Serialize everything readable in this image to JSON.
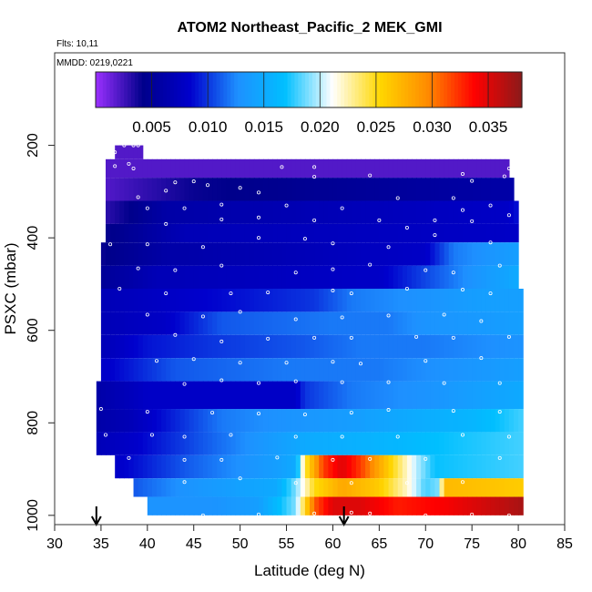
{
  "chart_data": {
    "type": "heatmap",
    "title": "ATOM2 Northeast_Pacific_2 MEK_GMI",
    "annotations": [
      "Flts: 10,11",
      "MMDD: 0219,0221"
    ],
    "xlabel": "Latitude (deg N)",
    "ylabel": "PSXC (mbar)",
    "xlim": [
      30,
      85
    ],
    "ylim": [
      1020,
      0
    ],
    "y_reversed": true,
    "xticks": [
      "30",
      "35",
      "40",
      "45",
      "50",
      "55",
      "60",
      "65",
      "70",
      "75",
      "80",
      "85"
    ],
    "yticks": [
      "200",
      "400",
      "600",
      "800",
      "1000"
    ],
    "colorbar": {
      "range": [
        0,
        0.038
      ],
      "ticks": [
        "0.005",
        "0.010",
        "0.015",
        "0.020",
        "0.025",
        "0.030",
        "0.035"
      ],
      "colors": [
        "#9b30ff",
        "#00008b",
        "#0000cd",
        "#1e90ff",
        "#00bfff",
        "#ffffff",
        "#ffd700",
        "#ff8c00",
        "#ff0000",
        "#8b1a1a"
      ]
    },
    "level_bands": [
      {
        "p": [
          200,
          230
        ],
        "lat": [
          36.5,
          39.5
        ],
        "profile": [
          [
            36.5,
            0.002
          ],
          [
            39.5,
            0.002
          ]
        ]
      },
      {
        "p": [
          230,
          270
        ],
        "lat": [
          35.5,
          79.0
        ],
        "profile": [
          [
            35.5,
            0.002
          ],
          [
            79.0,
            0.002
          ]
        ]
      },
      {
        "p": [
          270,
          320
        ],
        "lat": [
          35.5,
          79.5
        ],
        "profile": [
          [
            35.5,
            0.002
          ],
          [
            45,
            0.004
          ],
          [
            79.5,
            0.006
          ]
        ]
      },
      {
        "p": [
          320,
          370
        ],
        "lat": [
          35.5,
          80.0
        ],
        "profile": [
          [
            35.5,
            0.003
          ],
          [
            42,
            0.006
          ],
          [
            79,
            0.008
          ],
          [
            80,
            0.009
          ]
        ]
      },
      {
        "p": [
          370,
          410
        ],
        "lat": [
          35.5,
          80.0
        ],
        "profile": [
          [
            35.5,
            0.004
          ],
          [
            44,
            0.007
          ],
          [
            80.0,
            0.008
          ]
        ]
      },
      {
        "p": [
          410,
          460
        ],
        "lat": [
          35.0,
          80.0
        ],
        "profile": [
          [
            35.0,
            0.004
          ],
          [
            42,
            0.006
          ],
          [
            70,
            0.008
          ],
          [
            73,
            0.012
          ],
          [
            80,
            0.014
          ]
        ]
      },
      {
        "p": [
          460,
          510
        ],
        "lat": [
          35.0,
          80.0
        ],
        "profile": [
          [
            35.0,
            0.005
          ],
          [
            41,
            0.007
          ],
          [
            65,
            0.008
          ],
          [
            71,
            0.011
          ],
          [
            75,
            0.013
          ],
          [
            80,
            0.015
          ]
        ]
      },
      {
        "p": [
          510,
          560
        ],
        "lat": [
          35.0,
          80.5
        ],
        "profile": [
          [
            35.0,
            0.007
          ],
          [
            43,
            0.008
          ],
          [
            58,
            0.01
          ],
          [
            62,
            0.012
          ],
          [
            70,
            0.013
          ],
          [
            76,
            0.014
          ],
          [
            80.5,
            0.014
          ]
        ]
      },
      {
        "p": [
          560,
          610
        ],
        "lat": [
          35.0,
          80.5
        ],
        "profile": [
          [
            35.0,
            0.007
          ],
          [
            42,
            0.008
          ],
          [
            48,
            0.011
          ],
          [
            60,
            0.012
          ],
          [
            66,
            0.012
          ],
          [
            70,
            0.013
          ],
          [
            80.5,
            0.014
          ]
        ]
      },
      {
        "p": [
          610,
          660
        ],
        "lat": [
          35.0,
          80.5
        ],
        "profile": [
          [
            35.0,
            0.007
          ],
          [
            40,
            0.009
          ],
          [
            47,
            0.01
          ],
          [
            57,
            0.011
          ],
          [
            63,
            0.012
          ],
          [
            70,
            0.012
          ],
          [
            80.5,
            0.013
          ]
        ]
      },
      {
        "p": [
          660,
          710
        ],
        "lat": [
          35.0,
          80.5
        ],
        "profile": [
          [
            35.0,
            0.008
          ],
          [
            43,
            0.011
          ],
          [
            55,
            0.012
          ],
          [
            65,
            0.012
          ],
          [
            80.5,
            0.014
          ]
        ]
      },
      {
        "p": [
          710,
          770
        ],
        "lat": [
          34.5,
          80.5
        ],
        "profile": [
          [
            34.5,
            0.006
          ],
          [
            40,
            0.008
          ],
          [
            56,
            0.008
          ],
          [
            57,
            0.01
          ],
          [
            62,
            0.012
          ],
          [
            70,
            0.013
          ],
          [
            80.5,
            0.015
          ]
        ]
      },
      {
        "p": [
          770,
          820
        ],
        "lat": [
          34.5,
          80.5
        ],
        "profile": [
          [
            34.5,
            0.006
          ],
          [
            38,
            0.007
          ],
          [
            48,
            0.012
          ],
          [
            55,
            0.013
          ],
          [
            63,
            0.014
          ],
          [
            68,
            0.015
          ],
          [
            75,
            0.016
          ],
          [
            80.5,
            0.018
          ]
        ]
      },
      {
        "p": [
          820,
          870
        ],
        "lat": [
          34.5,
          80.5
        ],
        "profile": [
          [
            34.5,
            0.007
          ],
          [
            38,
            0.008
          ],
          [
            46,
            0.011
          ],
          [
            57,
            0.015
          ],
          [
            66,
            0.016
          ],
          [
            72,
            0.017
          ],
          [
            80.5,
            0.018
          ]
        ]
      },
      {
        "p": [
          870,
          920
        ],
        "lat": [
          36.5,
          80.5
        ],
        "profile": [
          [
            36.5,
            0.008
          ],
          [
            44,
            0.011
          ],
          [
            54,
            0.014
          ],
          [
            56,
            0.015
          ],
          [
            57,
            0.024
          ],
          [
            59,
            0.032
          ],
          [
            61,
            0.035
          ],
          [
            63,
            0.032
          ],
          [
            66,
            0.026
          ],
          [
            69,
            0.02
          ],
          [
            71,
            0.017
          ],
          [
            80.5,
            0.018
          ]
        ]
      },
      {
        "p": [
          920,
          960
        ],
        "lat": [
          38.5,
          80.5
        ],
        "profile": [
          [
            38.5,
            0.011
          ],
          [
            44,
            0.013
          ],
          [
            54,
            0.015
          ],
          [
            56,
            0.019
          ],
          [
            58,
            0.025
          ],
          [
            61,
            0.028
          ],
          [
            65,
            0.026
          ],
          [
            68,
            0.022
          ],
          [
            70,
            0.018
          ],
          [
            71.5,
            0.019
          ],
          [
            72,
            0.027
          ],
          [
            80.5,
            0.026
          ]
        ]
      },
      {
        "p": [
          960,
          1000
        ],
        "lat": [
          40.0,
          80.5
        ],
        "profile": [
          [
            40.0,
            0.013
          ],
          [
            47,
            0.013
          ],
          [
            52,
            0.014
          ],
          [
            56,
            0.019
          ],
          [
            58,
            0.031
          ],
          [
            60,
            0.035
          ],
          [
            63,
            0.035
          ],
          [
            67,
            0.033
          ],
          [
            72,
            0.034
          ],
          [
            78,
            0.036
          ],
          [
            80.5,
            0.037
          ]
        ]
      }
    ],
    "obs_points": [
      [
        37.5,
        200
      ],
      [
        38.5,
        200
      ],
      [
        39,
        200
      ],
      [
        36.5,
        215
      ],
      [
        38,
        240
      ],
      [
        36.5,
        245
      ],
      [
        38.5,
        250
      ],
      [
        58,
        247
      ],
      [
        54.5,
        247
      ],
      [
        43,
        280
      ],
      [
        45,
        278
      ],
      [
        46.5,
        286
      ],
      [
        50,
        292
      ],
      [
        52,
        302
      ],
      [
        58,
        268
      ],
      [
        64,
        265
      ],
      [
        74,
        262
      ],
      [
        75,
        277
      ],
      [
        79,
        250
      ],
      [
        78.5,
        267
      ],
      [
        39,
        312
      ],
      [
        42,
        298
      ],
      [
        40,
        336
      ],
      [
        44,
        336
      ],
      [
        48,
        328
      ],
      [
        55,
        330
      ],
      [
        61,
        336
      ],
      [
        67,
        314
      ],
      [
        73,
        314
      ],
      [
        74,
        340
      ],
      [
        77,
        330
      ],
      [
        42,
        370
      ],
      [
        48,
        360
      ],
      [
        52,
        356
      ],
      [
        58,
        362
      ],
      [
        65,
        362
      ],
      [
        68,
        378
      ],
      [
        71,
        362
      ],
      [
        75,
        364
      ],
      [
        79,
        351
      ],
      [
        36,
        414
      ],
      [
        40,
        414
      ],
      [
        46,
        420
      ],
      [
        52,
        400
      ],
      [
        57,
        402
      ],
      [
        60,
        412
      ],
      [
        66,
        420
      ],
      [
        71,
        394
      ],
      [
        77,
        410
      ],
      [
        39,
        466
      ],
      [
        43,
        470
      ],
      [
        48,
        460
      ],
      [
        56,
        475
      ],
      [
        60,
        468
      ],
      [
        64,
        458
      ],
      [
        70,
        470
      ],
      [
        73,
        475
      ],
      [
        78,
        460
      ],
      [
        37,
        510
      ],
      [
        42,
        520
      ],
      [
        49,
        520
      ],
      [
        53,
        518
      ],
      [
        60,
        514
      ],
      [
        62,
        520
      ],
      [
        68,
        510
      ],
      [
        74,
        512
      ],
      [
        77,
        520
      ],
      [
        40,
        566
      ],
      [
        46,
        570
      ],
      [
        50,
        560
      ],
      [
        56,
        576
      ],
      [
        61,
        572
      ],
      [
        66,
        568
      ],
      [
        72,
        566
      ],
      [
        76,
        580
      ],
      [
        43,
        610
      ],
      [
        48,
        624
      ],
      [
        53,
        618
      ],
      [
        58,
        616
      ],
      [
        62,
        616
      ],
      [
        69,
        614
      ],
      [
        73,
        616
      ],
      [
        79,
        614
      ],
      [
        41,
        666
      ],
      [
        45,
        662
      ],
      [
        50,
        670
      ],
      [
        55,
        670
      ],
      [
        60,
        668
      ],
      [
        63,
        672
      ],
      [
        70,
        666
      ],
      [
        76,
        660
      ],
      [
        44,
        716
      ],
      [
        48,
        708
      ],
      [
        52,
        714
      ],
      [
        56,
        710
      ],
      [
        61,
        712
      ],
      [
        66,
        712
      ],
      [
        72,
        714
      ],
      [
        78,
        714
      ],
      [
        35,
        770
      ],
      [
        40,
        776
      ],
      [
        47,
        778
      ],
      [
        52,
        780
      ],
      [
        57,
        782
      ],
      [
        62,
        778
      ],
      [
        66,
        772
      ],
      [
        73,
        774
      ],
      [
        78,
        776
      ],
      [
        35.5,
        826
      ],
      [
        40.5,
        826
      ],
      [
        44,
        830
      ],
      [
        49,
        826
      ],
      [
        56,
        830
      ],
      [
        61,
        830
      ],
      [
        67,
        830
      ],
      [
        74,
        826
      ],
      [
        79,
        830
      ],
      [
        38,
        876
      ],
      [
        44,
        880
      ],
      [
        48,
        880
      ],
      [
        54,
        875
      ],
      [
        60,
        880
      ],
      [
        64,
        878
      ],
      [
        70,
        878
      ],
      [
        78,
        876
      ],
      [
        44,
        928
      ],
      [
        50,
        920
      ],
      [
        56,
        930
      ],
      [
        62,
        930
      ],
      [
        68,
        930
      ],
      [
        74,
        928
      ],
      [
        46,
        1000
      ],
      [
        52,
        998
      ],
      [
        58,
        996
      ],
      [
        62,
        994
      ],
      [
        64,
        996
      ],
      [
        70,
        1000
      ],
      [
        75,
        998
      ],
      [
        79,
        1000
      ]
    ],
    "markers": [
      {
        "lat": 34.5,
        "label": ""
      },
      {
        "lat": 61.2,
        "label": ""
      }
    ]
  }
}
